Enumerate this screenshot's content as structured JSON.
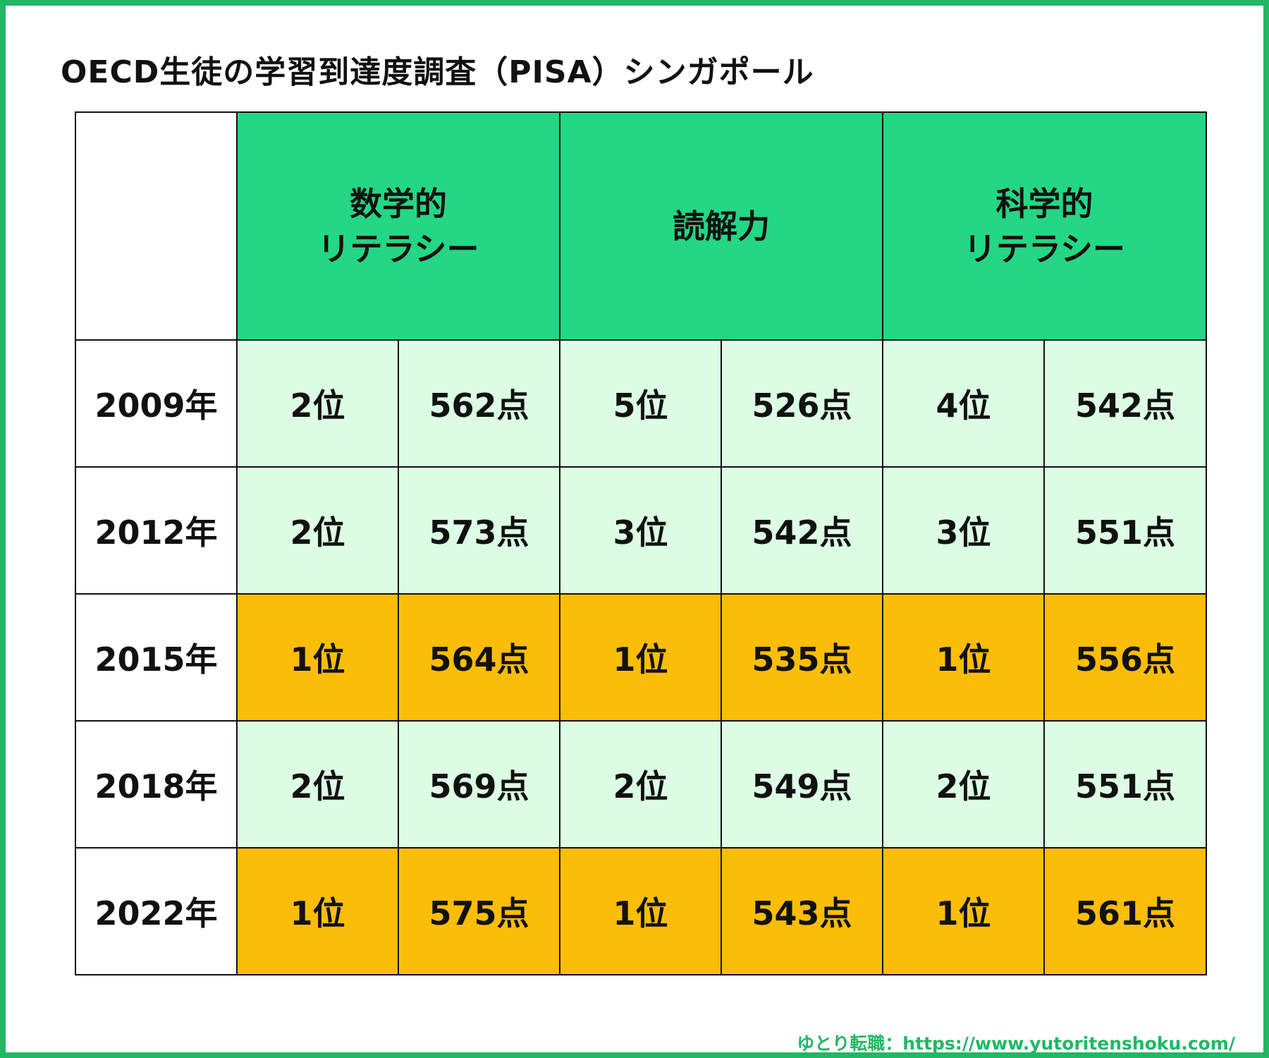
{
  "title": "OECD生徒の学習到達度調査（PISA）シンガポール",
  "headers": {
    "math": [
      "数学的",
      "リテラシー"
    ],
    "reading": [
      "読解力"
    ],
    "science": [
      "科学的",
      "リテラシー"
    ]
  },
  "rows": [
    {
      "year": "2009年",
      "math_rank": "2位",
      "math_score": "562点",
      "reading_rank": "5位",
      "reading_score": "526点",
      "science_rank": "4位",
      "science_score": "542点",
      "highlight": false
    },
    {
      "year": "2012年",
      "math_rank": "2位",
      "math_score": "573点",
      "reading_rank": "3位",
      "reading_score": "542点",
      "science_rank": "3位",
      "science_score": "551点",
      "highlight": false
    },
    {
      "year": "2015年",
      "math_rank": "1位",
      "math_score": "564点",
      "reading_rank": "1位",
      "reading_score": "535点",
      "science_rank": "1位",
      "science_score": "556点",
      "highlight": true
    },
    {
      "year": "2018年",
      "math_rank": "2位",
      "math_score": "569点",
      "reading_rank": "2位",
      "reading_score": "549点",
      "science_rank": "2位",
      "science_score": "551点",
      "highlight": false
    },
    {
      "year": "2022年",
      "math_rank": "1位",
      "math_score": "575点",
      "reading_rank": "1位",
      "reading_score": "543点",
      "science_rank": "1位",
      "science_score": "561点",
      "highlight": true
    }
  ],
  "footer": "ゆとり転職：https://www.yutoritenshoku.com/",
  "colors": {
    "frame": "#1fb863",
    "header": "#23d784",
    "row_normal": "#dcfde4",
    "row_top": "#fbbd08"
  }
}
